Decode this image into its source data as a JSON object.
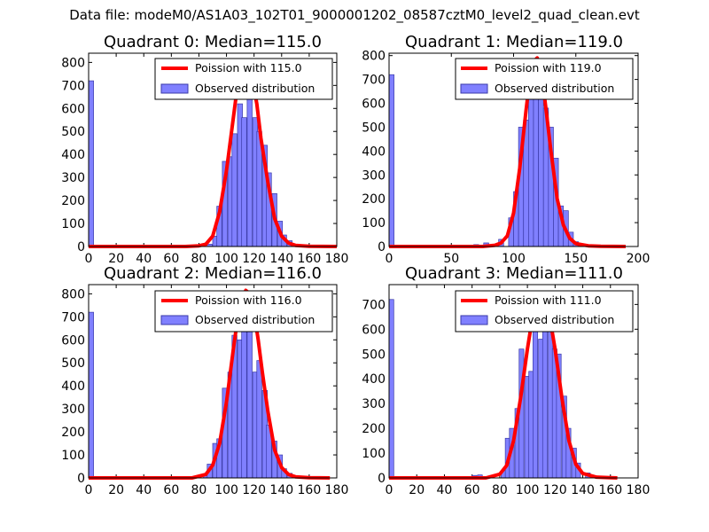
{
  "figure": {
    "suptitle": "Data file: modeM0/AS1A03_102T01_9000001202_08587cztM0_level2_quad_clean.evt"
  },
  "colors": {
    "poisson_line": "#ff0000",
    "hist_fill": "#8080ff",
    "hist_edge": "#3a3aa8",
    "axis": "#000000"
  },
  "chart_data": [
    {
      "id": "q0",
      "type": "bar",
      "title": "Quadrant 0: Median=115.0",
      "xlabel": "",
      "ylabel": "",
      "xlim": [
        0,
        180
      ],
      "ylim": [
        0,
        840
      ],
      "xticks": [
        0,
        20,
        40,
        60,
        80,
        100,
        120,
        140,
        160,
        180
      ],
      "yticks": [
        0,
        100,
        200,
        300,
        400,
        500,
        600,
        700,
        800
      ],
      "legend": {
        "location": "top-right",
        "entries": [
          "Poission with 115.0",
          "Observed distribution"
        ]
      },
      "bin_width": 3.6,
      "histogram": {
        "bin_starts": [
          0,
          68,
          86,
          90,
          93,
          97,
          101,
          104,
          108,
          111,
          115,
          119,
          122,
          126,
          129,
          133,
          137,
          140,
          144,
          147,
          151,
          155
        ],
        "counts": [
          720,
          5,
          10,
          45,
          175,
          370,
          390,
          490,
          620,
          560,
          690,
          560,
          500,
          440,
          320,
          230,
          110,
          50,
          25,
          10,
          5,
          2
        ]
      },
      "poisson": {
        "label": "Poission with 115.0",
        "x": [
          0,
          70,
          80,
          85,
          90,
          95,
          100,
          105,
          108,
          111,
          113,
          115,
          117,
          119,
          122,
          125,
          130,
          135,
          140,
          145,
          150,
          160,
          180
        ],
        "y": [
          0,
          0,
          3,
          10,
          45,
          150,
          330,
          560,
          700,
          790,
          805,
          800,
          770,
          720,
          620,
          470,
          280,
          120,
          45,
          15,
          5,
          1,
          0
        ]
      }
    },
    {
      "id": "q1",
      "type": "bar",
      "title": "Quadrant 1: Median=119.0",
      "xlabel": "",
      "ylabel": "",
      "xlim": [
        0,
        200
      ],
      "ylim": [
        0,
        810
      ],
      "xticks": [
        0,
        50,
        100,
        150,
        200
      ],
      "yticks": [
        0,
        100,
        200,
        300,
        400,
        500,
        600,
        700,
        800
      ],
      "legend": {
        "location": "top-right",
        "entries": [
          "Poission with 119.0",
          "Observed distribution"
        ]
      },
      "bin_width": 4,
      "histogram": {
        "bin_starts": [
          0,
          68,
          76,
          88,
          96,
          100,
          104,
          108,
          112,
          116,
          120,
          124,
          128,
          132,
          136,
          140,
          144,
          148,
          156
        ],
        "counts": [
          720,
          8,
          15,
          30,
          120,
          230,
          500,
          530,
          700,
          640,
          660,
          580,
          500,
          370,
          170,
          150,
          60,
          20,
          5
        ]
      },
      "poisson": {
        "label": "Poission with 119.0",
        "x": [
          0,
          75,
          85,
          90,
          95,
          100,
          105,
          110,
          113,
          116,
          119,
          122,
          125,
          130,
          135,
          140,
          145,
          150,
          160,
          170,
          190
        ],
        "y": [
          0,
          0,
          5,
          15,
          45,
          140,
          330,
          570,
          700,
          775,
          790,
          740,
          620,
          400,
          200,
          90,
          35,
          12,
          3,
          1,
          0
        ]
      }
    },
    {
      "id": "q2",
      "type": "bar",
      "title": "Quadrant 2: Median=116.0",
      "xlabel": "",
      "ylabel": "",
      "xlim": [
        0,
        180
      ],
      "ylim": [
        0,
        840
      ],
      "xticks": [
        0,
        20,
        40,
        60,
        80,
        100,
        120,
        140,
        160,
        180
      ],
      "yticks": [
        0,
        100,
        200,
        300,
        400,
        500,
        600,
        700,
        800
      ],
      "legend": {
        "location": "top-right",
        "entries": [
          "Poission with 116.0",
          "Observed distribution"
        ]
      },
      "bin_width": 3.6,
      "histogram": {
        "bin_starts": [
          0,
          70,
          83,
          86,
          90,
          93,
          97,
          101,
          104,
          108,
          111,
          115,
          119,
          122,
          126,
          129,
          133,
          137,
          140,
          144,
          151
        ],
        "counts": [
          720,
          5,
          15,
          60,
          150,
          170,
          390,
          460,
          620,
          600,
          760,
          650,
          460,
          510,
          380,
          230,
          160,
          100,
          40,
          20,
          5
        ]
      },
      "poisson": {
        "label": "Poission with 116.0",
        "x": [
          0,
          75,
          85,
          90,
          95,
          100,
          105,
          108,
          111,
          114,
          116,
          118,
          120,
          123,
          126,
          130,
          135,
          140,
          145,
          150,
          160,
          175
        ],
        "y": [
          0,
          0,
          15,
          55,
          150,
          330,
          560,
          690,
          780,
          815,
          805,
          780,
          720,
          600,
          460,
          290,
          120,
          45,
          15,
          5,
          1,
          0
        ]
      }
    },
    {
      "id": "q3",
      "type": "bar",
      "title": "Quadrant 3: Median=111.0",
      "xlabel": "",
      "ylabel": "",
      "xlim": [
        0,
        180
      ],
      "ylim": [
        0,
        780
      ],
      "xticks": [
        0,
        20,
        40,
        60,
        80,
        100,
        120,
        140,
        160,
        180
      ],
      "yticks": [
        0,
        100,
        200,
        300,
        400,
        500,
        600,
        700
      ],
      "legend": {
        "location": "top-right",
        "entries": [
          "Poission with 111.0",
          "Observed distribution"
        ]
      },
      "bin_width": 3.4,
      "histogram": {
        "bin_starts": [
          0,
          60,
          64,
          81,
          84,
          87,
          91,
          94,
          98,
          101,
          104,
          108,
          111,
          115,
          118,
          121,
          125,
          128,
          132,
          135,
          142,
          149
        ],
        "counts": [
          720,
          10,
          12,
          30,
          160,
          200,
          280,
          520,
          410,
          430,
          640,
          560,
          700,
          610,
          520,
          500,
          330,
          200,
          120,
          60,
          20,
          5
        ]
      },
      "poisson": {
        "label": "Poission with 111.0",
        "x": [
          0,
          70,
          80,
          85,
          90,
          95,
          100,
          104,
          107,
          110,
          112,
          114,
          117,
          120,
          125,
          130,
          135,
          140,
          150,
          160,
          165
        ],
        "y": [
          0,
          0,
          15,
          50,
          150,
          320,
          520,
          660,
          720,
          740,
          735,
          700,
          620,
          520,
          320,
          150,
          55,
          18,
          3,
          1,
          0
        ]
      }
    }
  ]
}
